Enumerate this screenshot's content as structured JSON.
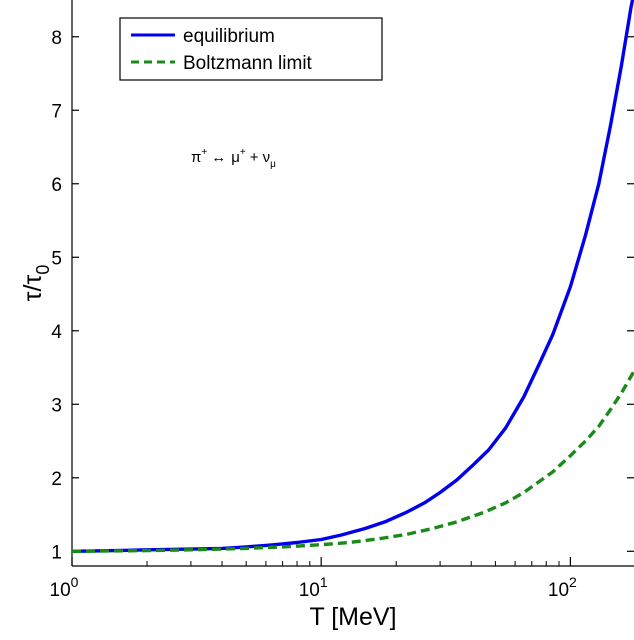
{
  "chart_data": {
    "type": "line",
    "xscale": "log",
    "xlim": [
      1,
      180
    ],
    "ylim": [
      0.8,
      8.5
    ],
    "xlabel": "T [MeV]",
    "ylabel": "τ/τ",
    "ylabel_sub": "0",
    "xticks": [
      {
        "value": 1,
        "base": "10",
        "exp": "0"
      },
      {
        "value": 10,
        "base": "10",
        "exp": "1"
      },
      {
        "value": 100,
        "base": "10",
        "exp": "2"
      }
    ],
    "yticks": [
      1,
      2,
      3,
      4,
      5,
      6,
      7,
      8
    ],
    "grid": false,
    "legend_placement": "top-left",
    "annotation": {
      "pi": "π",
      "plus": "+",
      "arrow": "↔",
      "mu": "μ",
      "mid": "+ ν",
      "sub": "μ"
    },
    "series": [
      {
        "name": "equilibrium",
        "color": "#0000ee",
        "style": "solid",
        "x": [
          1,
          1.5,
          2,
          3,
          4,
          5,
          6,
          7,
          8,
          10,
          12,
          15,
          18,
          22,
          26,
          30,
          35,
          40,
          47,
          55,
          65,
          75,
          85,
          100,
          115,
          130,
          145,
          160,
          175,
          180
        ],
        "y": [
          1.0,
          1.01,
          1.02,
          1.03,
          1.04,
          1.06,
          1.08,
          1.1,
          1.12,
          1.16,
          1.22,
          1.31,
          1.4,
          1.53,
          1.66,
          1.8,
          1.97,
          2.15,
          2.38,
          2.68,
          3.1,
          3.55,
          3.95,
          4.6,
          5.3,
          6.0,
          6.8,
          7.6,
          8.4,
          8.6
        ]
      },
      {
        "name": "Boltzmann limit",
        "color": "#1a8a1a",
        "style": "dashed",
        "x": [
          1,
          2,
          3,
          5,
          7,
          10,
          13,
          17,
          22,
          28,
          35,
          45,
          55,
          65,
          75,
          85,
          100,
          115,
          130,
          145,
          160,
          175,
          180
        ],
        "y": [
          1.0,
          1.01,
          1.02,
          1.04,
          1.06,
          1.09,
          1.12,
          1.17,
          1.23,
          1.31,
          1.4,
          1.53,
          1.66,
          1.8,
          1.95,
          2.08,
          2.3,
          2.5,
          2.7,
          2.93,
          3.15,
          3.38,
          3.45
        ]
      }
    ]
  }
}
